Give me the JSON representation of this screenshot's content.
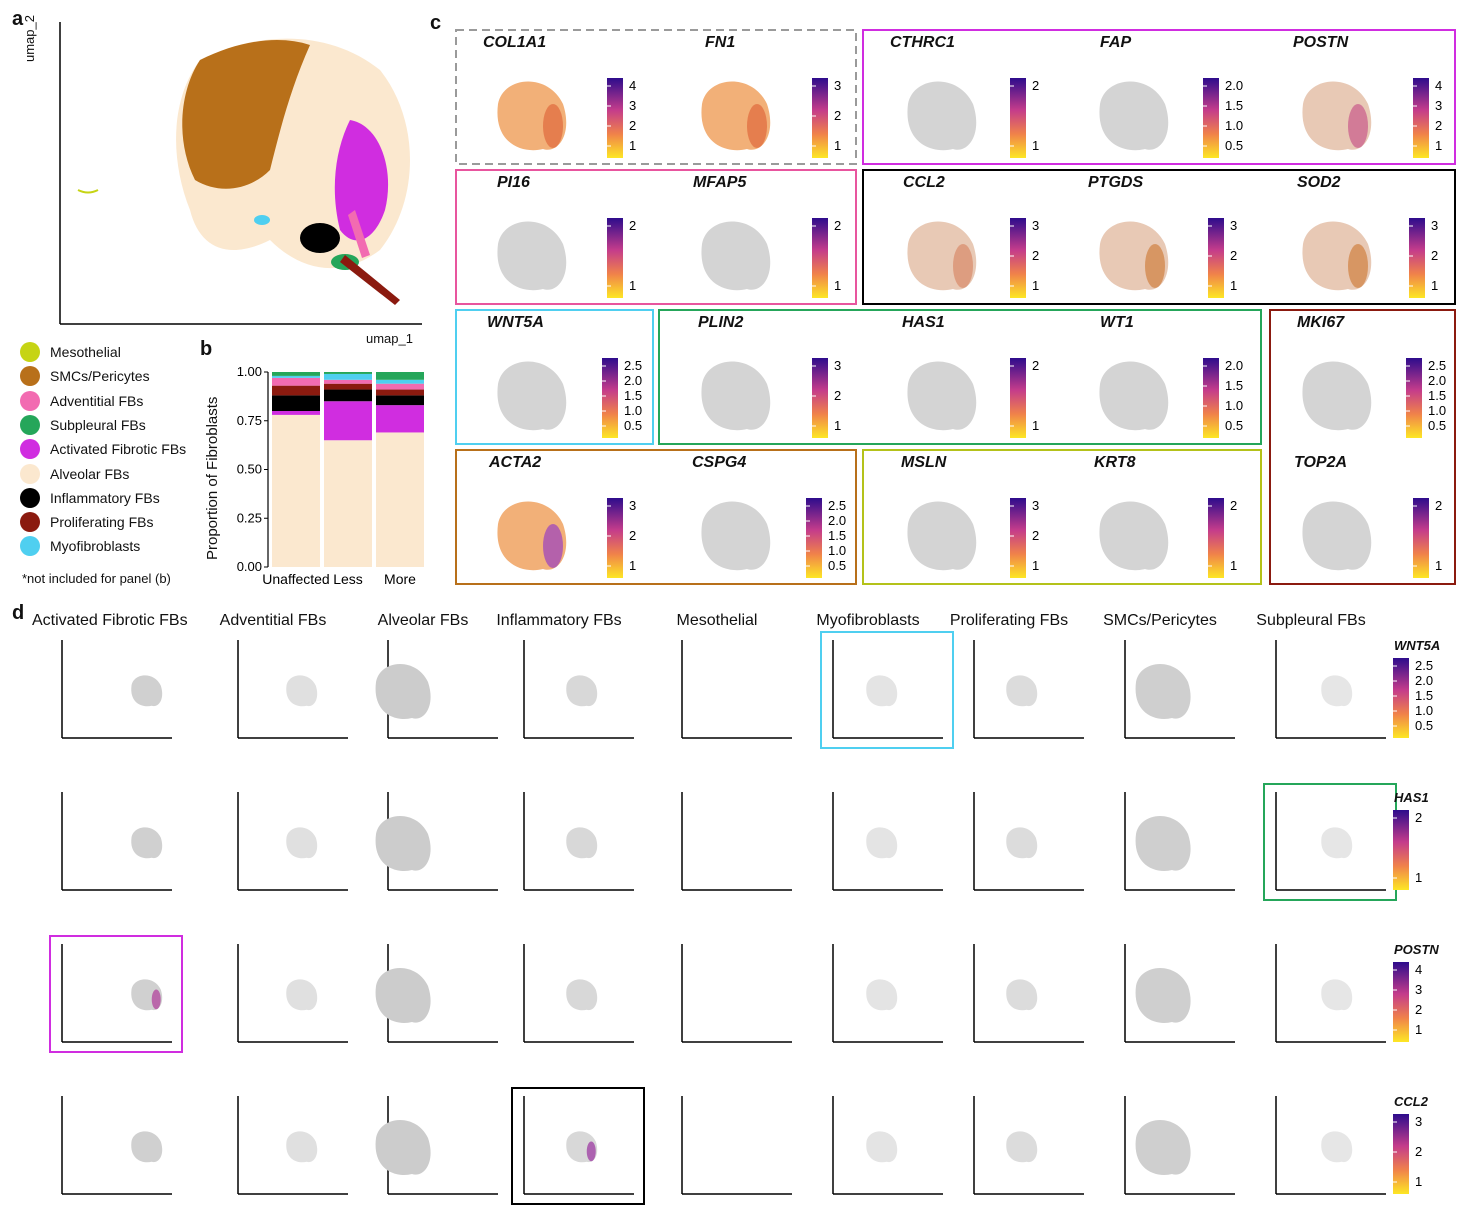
{
  "panels": {
    "a": "a",
    "b": "b",
    "c": "c",
    "d": "d"
  },
  "panel_a": {
    "xlabel": "umap_1",
    "ylabel": "umap_2"
  },
  "legend": {
    "items": [
      {
        "label": "Mesothelial",
        "color": "#c6d414"
      },
      {
        "label": "SMCs/Pericytes",
        "color": "#b8701a"
      },
      {
        "label": "Adventitial FBs",
        "color": "#f26bb1"
      },
      {
        "label": "Subpleural FBs",
        "color": "#25a65a"
      },
      {
        "label": "Activated Fibrotic FBs",
        "color": "#d02de0"
      },
      {
        "label": "Alveolar FBs",
        "color": "#fbe8cf"
      },
      {
        "label": "Inflammatory FBs",
        "color": "#000000"
      },
      {
        "label": "Proliferating FBs",
        "color": "#8b1a0f"
      },
      {
        "label": "Myofibroblasts",
        "color": "#4fcff0"
      }
    ],
    "note": "*not included for panel (b)"
  },
  "chart_data": {
    "type": "bar",
    "stacked": true,
    "categories": [
      "Unaffected",
      "Less",
      "More"
    ],
    "ylabel": "Proportion of Fibroblasts",
    "yticks": [
      "0.00",
      "0.25",
      "0.50",
      "0.75",
      "1.00"
    ],
    "ylim": [
      0,
      1
    ],
    "series": [
      {
        "name": "Alveolar FBs",
        "color": "#fbe8cf",
        "values": [
          0.78,
          0.65,
          0.69
        ]
      },
      {
        "name": "Activated Fibrotic FBs",
        "color": "#d02de0",
        "values": [
          0.02,
          0.2,
          0.14
        ]
      },
      {
        "name": "Inflammatory FBs",
        "color": "#000000",
        "values": [
          0.08,
          0.06,
          0.05
        ]
      },
      {
        "name": "Proliferating FBs",
        "color": "#8b1a0f",
        "values": [
          0.05,
          0.03,
          0.03
        ]
      },
      {
        "name": "Adventitial FBs",
        "color": "#f26bb1",
        "values": [
          0.04,
          0.02,
          0.03
        ]
      },
      {
        "name": "Myofibroblasts",
        "color": "#4fcff0",
        "values": [
          0.01,
          0.03,
          0.02
        ]
      },
      {
        "name": "Subpleural FBs",
        "color": "#25a65a",
        "values": [
          0.02,
          0.01,
          0.04
        ]
      }
    ]
  },
  "panel_c": {
    "genes": [
      {
        "name": "COL1A1",
        "ticks": [
          "4",
          "3",
          "2",
          "1"
        ]
      },
      {
        "name": "FN1",
        "ticks": [
          "3",
          "2",
          "1"
        ]
      },
      {
        "name": "CTHRC1",
        "ticks": [
          "2",
          "1"
        ]
      },
      {
        "name": "FAP",
        "ticks": [
          "2.0",
          "1.5",
          "1.0",
          "0.5"
        ]
      },
      {
        "name": "POSTN",
        "ticks": [
          "4",
          "3",
          "2",
          "1"
        ]
      },
      {
        "name": "PI16",
        "ticks": [
          "2",
          "1"
        ]
      },
      {
        "name": "MFAP5",
        "ticks": [
          "2",
          "1"
        ]
      },
      {
        "name": "CCL2",
        "ticks": [
          "3",
          "2",
          "1"
        ]
      },
      {
        "name": "PTGDS",
        "ticks": [
          "3",
          "2",
          "1"
        ]
      },
      {
        "name": "SOD2",
        "ticks": [
          "3",
          "2",
          "1"
        ]
      },
      {
        "name": "WNT5A",
        "ticks": [
          "2.5",
          "2.0",
          "1.5",
          "1.0",
          "0.5"
        ]
      },
      {
        "name": "PLIN2",
        "ticks": [
          "3",
          "2",
          "1"
        ]
      },
      {
        "name": "HAS1",
        "ticks": [
          "2",
          "1"
        ]
      },
      {
        "name": "WT1",
        "ticks": [
          "2.0",
          "1.5",
          "1.0",
          "0.5"
        ]
      },
      {
        "name": "MKI67",
        "ticks": [
          "2.5",
          "2.0",
          "1.5",
          "1.0",
          "0.5"
        ]
      },
      {
        "name": "ACTA2",
        "ticks": [
          "3",
          "2",
          "1"
        ]
      },
      {
        "name": "CSPG4",
        "ticks": [
          "2.5",
          "2.0",
          "1.5",
          "1.0",
          "0.5"
        ]
      },
      {
        "name": "MSLN",
        "ticks": [
          "3",
          "2",
          "1"
        ]
      },
      {
        "name": "KRT8",
        "ticks": [
          "2",
          "1"
        ]
      },
      {
        "name": "TOP2A",
        "ticks": [
          "2",
          "1"
        ]
      }
    ]
  },
  "panel_d": {
    "columns": [
      "Activated Fibrotic FBs",
      "Adventitial FBs",
      "Alveolar FBs",
      "Inflammatory FBs",
      "Mesothelial",
      "Myofibroblasts",
      "Proliferating FBs",
      "SMCs/Pericytes",
      "Subpleural FBs"
    ],
    "rows": [
      {
        "gene": "WNT5A",
        "ticks": [
          "2.5",
          "2.0",
          "1.5",
          "1.0",
          "0.5"
        ]
      },
      {
        "gene": "HAS1",
        "ticks": [
          "2",
          "1"
        ]
      },
      {
        "gene": "POSTN",
        "ticks": [
          "4",
          "3",
          "2",
          "1"
        ]
      },
      {
        "gene": "CCL2",
        "ticks": [
          "3",
          "2",
          "1"
        ]
      }
    ]
  }
}
